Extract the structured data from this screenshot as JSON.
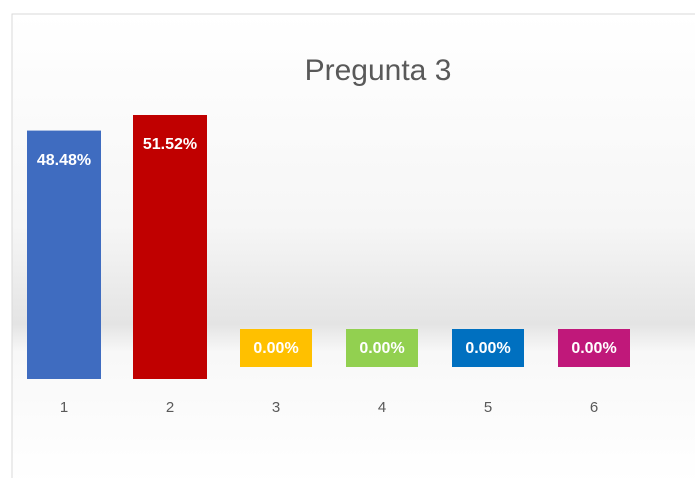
{
  "chart_data": {
    "type": "bar",
    "title": "Pregunta 3",
    "categories": [
      "1",
      "2",
      "3",
      "4",
      "5",
      "6"
    ],
    "values": [
      48.48,
      51.52,
      0,
      0,
      0,
      0
    ],
    "value_labels": [
      "48.48%",
      "51.52%",
      "0.00%",
      "0.00%",
      "0.00%",
      "0.00%"
    ],
    "colors": [
      "#3f6cc0",
      "#c00000",
      "#ffc000",
      "#92d050",
      "#0070c0",
      "#c0187a"
    ]
  }
}
